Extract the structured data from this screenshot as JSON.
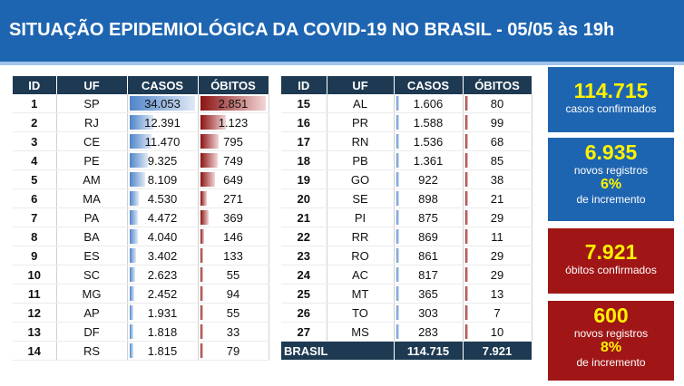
{
  "header": {
    "title": "SITUAÇÃO EPIDEMIOLÓGICA DA COVID-19 NO BRASIL - 05/05 às 19h"
  },
  "table": {
    "columns": [
      "ID",
      "UF",
      "CASOS",
      "ÓBITOS"
    ],
    "left_rows": [
      {
        "id": "1",
        "uf": "SP",
        "casos": "34.053",
        "obitos": "2.851",
        "casos_n": 34053,
        "obitos_n": 2851
      },
      {
        "id": "2",
        "uf": "RJ",
        "casos": "12.391",
        "obitos": "1.123",
        "casos_n": 12391,
        "obitos_n": 1123
      },
      {
        "id": "3",
        "uf": "CE",
        "casos": "11.470",
        "obitos": "795",
        "casos_n": 11470,
        "obitos_n": 795
      },
      {
        "id": "4",
        "uf": "PE",
        "casos": "9.325",
        "obitos": "749",
        "casos_n": 9325,
        "obitos_n": 749
      },
      {
        "id": "5",
        "uf": "AM",
        "casos": "8.109",
        "obitos": "649",
        "casos_n": 8109,
        "obitos_n": 649
      },
      {
        "id": "6",
        "uf": "MA",
        "casos": "4.530",
        "obitos": "271",
        "casos_n": 4530,
        "obitos_n": 271
      },
      {
        "id": "7",
        "uf": "PA",
        "casos": "4.472",
        "obitos": "369",
        "casos_n": 4472,
        "obitos_n": 369
      },
      {
        "id": "8",
        "uf": "BA",
        "casos": "4.040",
        "obitos": "146",
        "casos_n": 4040,
        "obitos_n": 146
      },
      {
        "id": "9",
        "uf": "ES",
        "casos": "3.402",
        "obitos": "133",
        "casos_n": 3402,
        "obitos_n": 133
      },
      {
        "id": "10",
        "uf": "SC",
        "casos": "2.623",
        "obitos": "55",
        "casos_n": 2623,
        "obitos_n": 55
      },
      {
        "id": "11",
        "uf": "MG",
        "casos": "2.452",
        "obitos": "94",
        "casos_n": 2452,
        "obitos_n": 94
      },
      {
        "id": "12",
        "uf": "AP",
        "casos": "1.931",
        "obitos": "55",
        "casos_n": 1931,
        "obitos_n": 55
      },
      {
        "id": "13",
        "uf": "DF",
        "casos": "1.818",
        "obitos": "33",
        "casos_n": 1818,
        "obitos_n": 33
      },
      {
        "id": "14",
        "uf": "RS",
        "casos": "1.815",
        "obitos": "79",
        "casos_n": 1815,
        "obitos_n": 79
      }
    ],
    "right_rows": [
      {
        "id": "15",
        "uf": "AL",
        "casos": "1.606",
        "obitos": "80",
        "casos_n": 1606,
        "obitos_n": 80
      },
      {
        "id": "16",
        "uf": "PR",
        "casos": "1.588",
        "obitos": "99",
        "casos_n": 1588,
        "obitos_n": 99
      },
      {
        "id": "17",
        "uf": "RN",
        "casos": "1.536",
        "obitos": "68",
        "casos_n": 1536,
        "obitos_n": 68
      },
      {
        "id": "18",
        "uf": "PB",
        "casos": "1.361",
        "obitos": "85",
        "casos_n": 1361,
        "obitos_n": 85
      },
      {
        "id": "19",
        "uf": "GO",
        "casos": "922",
        "obitos": "38",
        "casos_n": 922,
        "obitos_n": 38
      },
      {
        "id": "20",
        "uf": "SE",
        "casos": "898",
        "obitos": "21",
        "casos_n": 898,
        "obitos_n": 21
      },
      {
        "id": "21",
        "uf": "PI",
        "casos": "875",
        "obitos": "29",
        "casos_n": 875,
        "obitos_n": 29
      },
      {
        "id": "22",
        "uf": "RR",
        "casos": "869",
        "obitos": "11",
        "casos_n": 869,
        "obitos_n": 11
      },
      {
        "id": "23",
        "uf": "RO",
        "casos": "861",
        "obitos": "29",
        "casos_n": 861,
        "obitos_n": 29
      },
      {
        "id": "24",
        "uf": "AC",
        "casos": "817",
        "obitos": "29",
        "casos_n": 817,
        "obitos_n": 29
      },
      {
        "id": "25",
        "uf": "MT",
        "casos": "365",
        "obitos": "13",
        "casos_n": 365,
        "obitos_n": 13
      },
      {
        "id": "26",
        "uf": "TO",
        "casos": "303",
        "obitos": "7",
        "casos_n": 303,
        "obitos_n": 7
      },
      {
        "id": "27",
        "uf": "MS",
        "casos": "283",
        "obitos": "10",
        "casos_n": 283,
        "obitos_n": 10
      }
    ],
    "total": {
      "label": "BRASIL",
      "casos": "114.715",
      "obitos": "7.921"
    }
  },
  "cards": {
    "confirmed": {
      "value": "114.715",
      "label": "casos confirmados"
    },
    "new_cases": {
      "value": "6.935",
      "label": "novos registros",
      "percent": "6%",
      "suffix": "de incremento"
    },
    "deaths": {
      "value": "7.921",
      "label": "óbitos confirmados"
    },
    "new_deaths": {
      "value": "600",
      "label": "novos registros",
      "percent": "8%",
      "suffix": "de incremento"
    }
  },
  "colors": {
    "header_bg": "#1e65b1",
    "table_header_bg": "#1e3a52",
    "cases_bar": "#4f85c9",
    "deaths_bar": "#8c1313",
    "card_blue": "#1e65b1",
    "card_red": "#a01616",
    "card_highlight": "#fff200"
  }
}
